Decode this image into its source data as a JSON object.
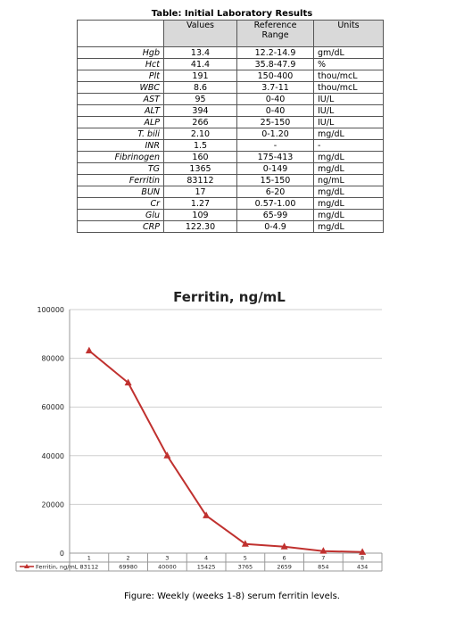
{
  "table": {
    "title": "Table: Initial Laboratory Results",
    "headers": [
      "",
      "Values",
      "Reference Range",
      "Units"
    ],
    "rows": [
      {
        "name": "Hgb",
        "value": "13.4",
        "range": "12.2-14.9",
        "unit": "gm/dL"
      },
      {
        "name": "Hct",
        "value": "41.4",
        "range": "35.8-47.9",
        "unit": "%"
      },
      {
        "name": "Plt",
        "value": "191",
        "range": "150-400",
        "unit": "thou/mcL"
      },
      {
        "name": "WBC",
        "value": "8.6",
        "range": "3.7-11",
        "unit": "thou/mcL"
      },
      {
        "name": "AST",
        "value": "95",
        "range": "0-40",
        "unit": "IU/L"
      },
      {
        "name": "ALT",
        "value": "394",
        "range": "0-40",
        "unit": "IU/L"
      },
      {
        "name": "ALP",
        "value": "266",
        "range": "25-150",
        "unit": "IU/L"
      },
      {
        "name": "T. bili",
        "value": "2.10",
        "range": "0-1.20",
        "unit": "mg/dL"
      },
      {
        "name": "INR",
        "value": "1.5",
        "range": "-",
        "unit": "-"
      },
      {
        "name": "Fibrinogen",
        "value": "160",
        "range": "175-413",
        "unit": "mg/dL"
      },
      {
        "name": "TG",
        "value": "1365",
        "range": "0-149",
        "unit": "mg/dL"
      },
      {
        "name": "Ferritin",
        "value": "83112",
        "range": "15-150",
        "unit": "ng/mL"
      },
      {
        "name": "BUN",
        "value": "17",
        "range": "6-20",
        "unit": "mg/dL"
      },
      {
        "name": "Cr",
        "value": "1.27",
        "range": "0.57-1.00",
        "unit": "mg/dL"
      },
      {
        "name": "Glu",
        "value": "109",
        "range": "65-99",
        "unit": "mg/dL"
      },
      {
        "name": "CRP",
        "value": "122.30",
        "range": "0-4.9",
        "unit": "mg/dL"
      }
    ]
  },
  "chart_data": {
    "type": "line",
    "title": "Ferritin, ng/mL",
    "categories": [
      "1",
      "2",
      "3",
      "4",
      "5",
      "6",
      "7",
      "8"
    ],
    "series": [
      {
        "name": "Ferritin, ng/mL",
        "values": [
          83112,
          69980,
          40000,
          15425,
          3765,
          2659,
          854,
          434
        ],
        "color": "#c0312f"
      }
    ],
    "yticks": [
      "0",
      "20000",
      "40000",
      "60000",
      "80000",
      "100000"
    ],
    "ylim": [
      0,
      100000
    ],
    "grid": true,
    "legend": "data-table-below"
  },
  "caption": "Figure: Weekly (weeks 1-8) serum ferritin levels."
}
